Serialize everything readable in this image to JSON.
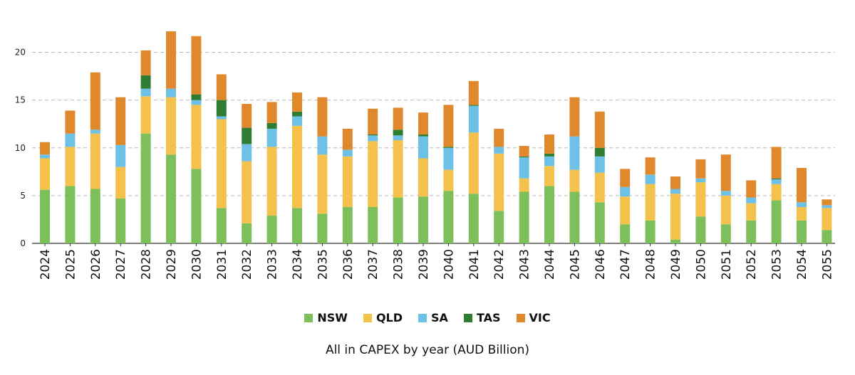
{
  "chart_data": {
    "type": "bar",
    "stacked": true,
    "title": "",
    "caption": "All in CAPEX by year (AUD Billion)",
    "xlabel": "",
    "ylabel": "",
    "ylim": [
      0,
      22.5
    ],
    "yticks": [
      0,
      5,
      10,
      15,
      20
    ],
    "grid": true,
    "legend_position": "bottom",
    "categories": [
      "2024",
      "2025",
      "2026",
      "2027",
      "2028",
      "2029",
      "2030",
      "2031",
      "2032",
      "2033",
      "2034",
      "2035",
      "2036",
      "2037",
      "2038",
      "2039",
      "2040",
      "2041",
      "2042",
      "2043",
      "2044",
      "2045",
      "2046",
      "2047",
      "2048",
      "2049",
      "2050",
      "2051",
      "2052",
      "2053",
      "2054",
      "2055"
    ],
    "series": [
      {
        "name": "NSW",
        "color": "#7dbf5b",
        "values": [
          5.6,
          6.0,
          5.7,
          4.7,
          11.5,
          9.3,
          7.8,
          3.7,
          2.1,
          2.9,
          3.7,
          3.1,
          3.8,
          3.8,
          4.8,
          4.9,
          5.5,
          5.2,
          3.4,
          5.4,
          6.0,
          5.4,
          4.3,
          2.0,
          2.4,
          0.4,
          2.8,
          2.0,
          2.4,
          4.5,
          2.4,
          1.4
        ]
      },
      {
        "name": "QLD",
        "color": "#f4c14c",
        "values": [
          3.3,
          4.1,
          5.8,
          3.3,
          3.9,
          6.0,
          6.7,
          9.3,
          6.5,
          7.2,
          8.6,
          6.2,
          5.3,
          6.9,
          6.0,
          4.0,
          2.2,
          6.4,
          6.0,
          1.4,
          2.1,
          2.3,
          3.1,
          2.9,
          3.8,
          4.8,
          3.6,
          3.0,
          1.8,
          1.7,
          1.4,
          2.3
        ]
      },
      {
        "name": "SA",
        "color": "#6ec1e6",
        "values": [
          0.4,
          1.4,
          0.4,
          2.3,
          0.8,
          0.9,
          0.5,
          0.3,
          1.8,
          1.9,
          1.0,
          1.9,
          0.7,
          0.6,
          0.5,
          2.3,
          2.3,
          2.8,
          0.7,
          2.2,
          1.0,
          3.5,
          1.7,
          1.0,
          1.0,
          0.5,
          0.4,
          0.5,
          0.6,
          0.5,
          0.5,
          0.3
        ]
      },
      {
        "name": "TAS",
        "color": "#2f7d32",
        "values": [
          0.0,
          0.0,
          0.0,
          0.0,
          1.4,
          0.0,
          0.6,
          1.7,
          1.7,
          0.6,
          0.5,
          0.0,
          0.0,
          0.1,
          0.6,
          0.2,
          0.1,
          0.1,
          0.0,
          0.1,
          0.3,
          0.0,
          0.9,
          0.0,
          0.0,
          0.0,
          0.0,
          0.0,
          0.0,
          0.1,
          0.0,
          0.0
        ]
      },
      {
        "name": "VIC",
        "color": "#e0892c",
        "values": [
          1.3,
          2.4,
          6.0,
          5.0,
          2.6,
          6.0,
          6.1,
          2.7,
          2.5,
          2.2,
          2.0,
          4.1,
          2.2,
          2.7,
          2.3,
          2.3,
          4.4,
          2.5,
          1.9,
          1.1,
          2.0,
          4.1,
          3.8,
          1.9,
          1.8,
          1.3,
          2.0,
          3.8,
          1.8,
          3.3,
          3.6,
          0.6
        ]
      }
    ]
  }
}
